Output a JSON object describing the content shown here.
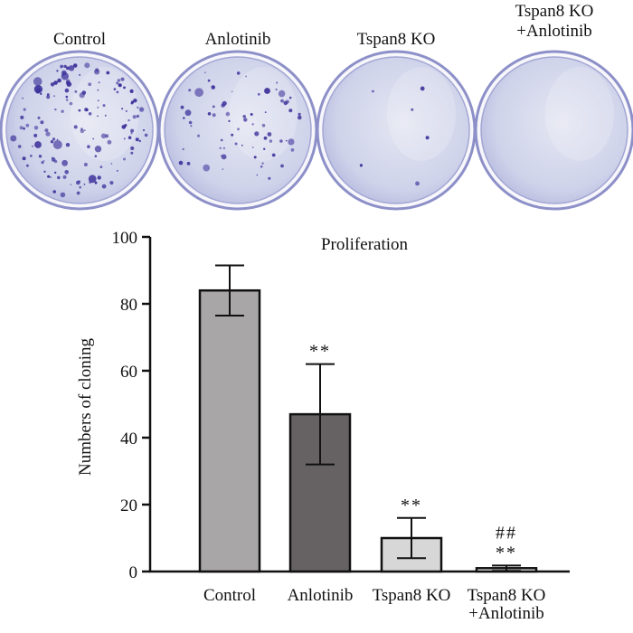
{
  "plates": [
    {
      "label_lines": [
        "Control"
      ],
      "density": "high"
    },
    {
      "label_lines": [
        "Anlotinib"
      ],
      "density": "medium"
    },
    {
      "label_lines": [
        "Tspan8 KO"
      ],
      "density": "low"
    },
    {
      "label_lines": [
        "Tspan8 KO",
        "+Anlotinib"
      ],
      "density": "none"
    }
  ],
  "colors": {
    "plate_fill": "#cfd3ea",
    "plate_rim": "#8d90c8",
    "colony": "#3b2f9a"
  },
  "chart_data": {
    "type": "bar",
    "title": "Proliferation",
    "ylabel": "Numbers of cloning",
    "xlabel": "",
    "ylim": [
      0,
      100
    ],
    "yticks": [
      0,
      20,
      40,
      60,
      80,
      100
    ],
    "categories": [
      {
        "lines": [
          "Control"
        ]
      },
      {
        "lines": [
          "Anlotinib"
        ]
      },
      {
        "lines": [
          "Tspan8 KO"
        ]
      },
      {
        "lines": [
          "Tspan8 KO",
          "+Anlotinib"
        ]
      }
    ],
    "values": [
      84,
      47,
      10,
      1
    ],
    "errors": [
      7.5,
      15,
      6,
      0.8
    ],
    "bar_colors": [
      "#a8a6a7",
      "#666263",
      "#d7d7d7",
      "#f4f4f4"
    ],
    "annotations": [
      {
        "index": 1,
        "lines": [
          "**"
        ]
      },
      {
        "index": 2,
        "lines": [
          "**"
        ]
      },
      {
        "index": 3,
        "lines": [
          "##",
          "**"
        ]
      }
    ]
  }
}
